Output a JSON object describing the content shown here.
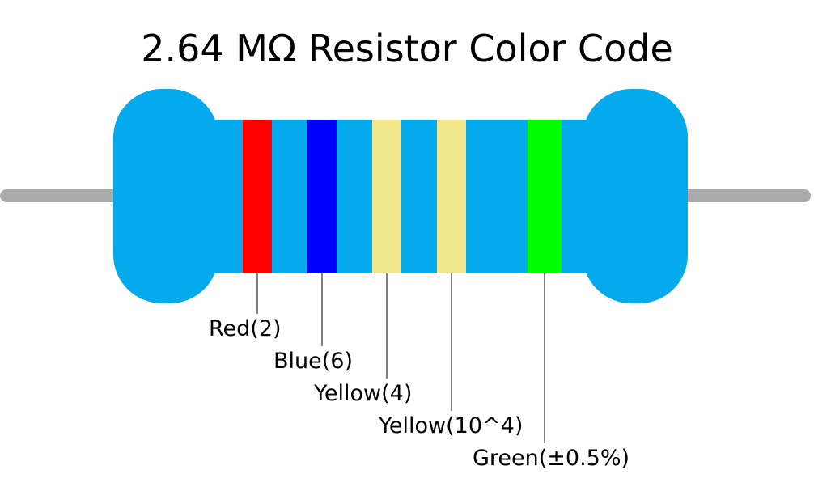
{
  "title": "2.64 MΩ Resistor Color Code",
  "colors": {
    "body": "#04aaec",
    "lead": "#aaaaaa",
    "leader_line": "#000000"
  },
  "bands": [
    {
      "color_name": "Red",
      "value": "2",
      "hex": "#ff0000",
      "label": "Red(2)"
    },
    {
      "color_name": "Blue",
      "value": "6",
      "hex": "#0000ff",
      "label": "Blue(6)"
    },
    {
      "color_name": "Yellow",
      "value": "4",
      "hex": "#f0e68c",
      "label": "Yellow(4)"
    },
    {
      "color_name": "Yellow",
      "value": "10^4",
      "hex": "#f0e68c",
      "label": "Yellow(10^4)"
    },
    {
      "color_name": "Green",
      "value": "±0.5%",
      "hex": "#00ff00",
      "label": "Green(±0.5%)"
    }
  ]
}
